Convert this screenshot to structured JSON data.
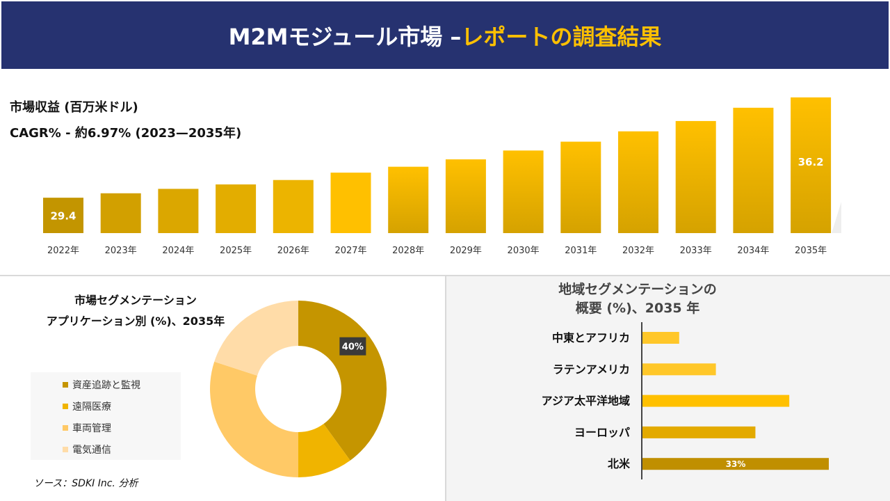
{
  "header": {
    "title_main": "M2Mモジュール市場 –",
    "title_highlight": "レポートの調査結果"
  },
  "revenue": {
    "label": "市場収益 (百万米ドル)",
    "cagr": "CAGR% - 約6.97% (2023—2035年)"
  },
  "chart_data": [
    {
      "type": "bar",
      "title": "市場収益 (百万米ドル)",
      "categories": [
        "2022年",
        "2023年",
        "2024年",
        "2025年",
        "2026年",
        "2027年",
        "2028年",
        "2029年",
        "2030年",
        "2031年",
        "2032年",
        "2033年",
        "2034年",
        "2035年"
      ],
      "values": [
        29.4,
        29.7,
        30.0,
        30.3,
        30.6,
        31.1,
        31.5,
        32.0,
        32.6,
        33.2,
        33.9,
        34.6,
        35.5,
        36.2
      ],
      "data_labels": {
        "0": "29.4",
        "13": "36.2"
      },
      "ylim": [
        27,
        36.2
      ],
      "colors": [
        "#c39500",
        "#d2a000",
        "#dba700",
        "#e3ad00",
        "#ecb400",
        "#ffc000",
        "#ffc000",
        "#ffc000",
        "#ffc000",
        "#ffc000",
        "#ffc000",
        "#ffc000",
        "#ffc000",
        "#ffc000"
      ]
    },
    {
      "type": "pie",
      "title": "市場セグメンテーション アプリケーション別 (%)、2035年",
      "labels": [
        "資産追跡と監視",
        "遠隔医療",
        "車両管理",
        "電気通信"
      ],
      "values": [
        40,
        10,
        30,
        20
      ],
      "data_labels": {
        "0": "40%"
      },
      "colors": [
        "#c59500",
        "#f0b400",
        "#ffc966",
        "#ffdca8"
      ]
    },
    {
      "type": "bar",
      "orientation": "horizontal",
      "title": "地域セグメンテーションの 概要 (%)、2035 年",
      "categories": [
        "中東とアフリカ",
        "ラテンアメリカ",
        "アジア太平洋地域",
        "ヨーロッパ",
        "北米"
      ],
      "values": [
        6.5,
        13,
        26,
        20,
        33
      ],
      "data_labels": {
        "4": "33%"
      },
      "colors": [
        "#ffc729",
        "#ffc729",
        "#ffc000",
        "#e3aa00",
        "#c08f00"
      ]
    }
  ],
  "segment": {
    "title_line1": "市場セグメンテーション",
    "title_line2": "アプリケーション別 (%)、2035年"
  },
  "region": {
    "title_line1": "地域セグメンテーションの",
    "title_line2": "概要 (%)、2035 年"
  },
  "source": "ソース：SDKI Inc. 分析"
}
